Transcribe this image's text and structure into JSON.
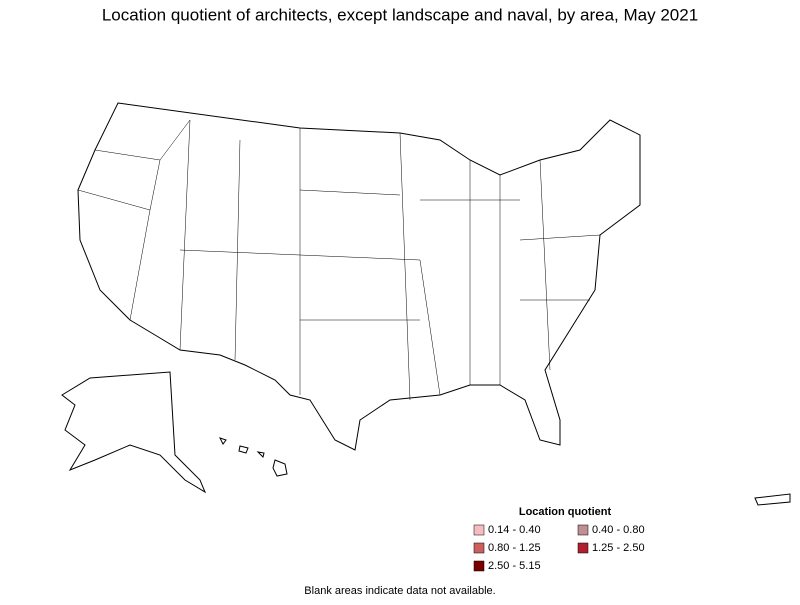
{
  "title": "Location quotient of architects, except landscape and naval, by area, May 2021",
  "legend": {
    "title": "Location quotient",
    "items": [
      {
        "label": "0.14 - 0.40",
        "color": "#f7bcc2"
      },
      {
        "label": "0.40 - 0.80",
        "color": "#bf8f93"
      },
      {
        "label": "0.80 - 1.25",
        "color": "#cd5f5f"
      },
      {
        "label": "1.25 - 2.50",
        "color": "#b01f2f"
      },
      {
        "label": "2.50 - 5.15",
        "color": "#7a0000"
      }
    ]
  },
  "note": "Blank areas indicate data not available."
}
